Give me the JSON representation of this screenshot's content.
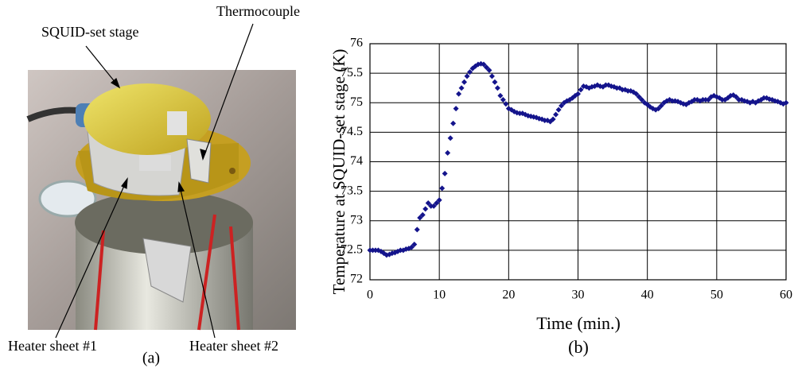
{
  "panel_a": {
    "labels": [
      "SQUID-set stage",
      "Thermocouple",
      "Heater sheet #1",
      "Heater sheet #2"
    ],
    "caption": "(a)"
  },
  "chart_data": {
    "type": "scatter",
    "caption": "(b)",
    "x_label": "Time (min.)",
    "y_label": "Temperature at SQUID-set stage (K)",
    "color": "#14148c",
    "grid": true,
    "xlim": [
      0,
      60
    ],
    "xticks": [
      0,
      10,
      20,
      30,
      40,
      50,
      60
    ],
    "ylim": [
      72,
      76
    ],
    "yticks": [
      72,
      72.5,
      73,
      73.5,
      74,
      74.5,
      75,
      75.5,
      76
    ],
    "x": [
      0,
      0.4,
      0.8,
      1.2,
      1.6,
      2,
      2.4,
      2.8,
      3.2,
      3.6,
      4,
      4.4,
      4.8,
      5.2,
      5.6,
      6,
      6.4,
      6.8,
      7.2,
      7.6,
      8,
      8.4,
      8.8,
      9.2,
      9.6,
      10,
      10.4,
      10.8,
      11.2,
      11.6,
      12,
      12.4,
      12.8,
      13.2,
      13.6,
      14,
      14.4,
      14.8,
      15.2,
      15.6,
      16,
      16.4,
      16.8,
      17.2,
      17.6,
      18,
      18.4,
      18.8,
      19.2,
      19.6,
      20,
      20.4,
      20.8,
      21.2,
      21.6,
      22,
      22.4,
      22.8,
      23.2,
      23.6,
      24,
      24.4,
      24.8,
      25.2,
      25.6,
      26,
      26.4,
      26.8,
      27.2,
      27.6,
      28,
      28.4,
      28.8,
      29.2,
      29.6,
      30,
      30.4,
      30.8,
      31.2,
      31.6,
      32,
      32.4,
      32.8,
      33.2,
      33.6,
      34,
      34.4,
      34.8,
      35.2,
      35.6,
      36,
      36.4,
      36.8,
      37.2,
      37.6,
      38,
      38.4,
      38.8,
      39.2,
      39.6,
      40,
      40.4,
      40.8,
      41.2,
      41.6,
      42,
      42.4,
      42.8,
      43.2,
      43.6,
      44,
      44.4,
      44.8,
      45.2,
      45.6,
      46,
      46.4,
      46.8,
      47.2,
      47.6,
      48,
      48.4,
      48.8,
      49.2,
      49.6,
      50,
      50.4,
      50.8,
      51.2,
      51.6,
      52,
      52.4,
      52.8,
      53.2,
      53.6,
      54,
      54.4,
      54.8,
      55.2,
      55.6,
      56,
      56.4,
      56.8,
      57.2,
      57.6,
      58,
      58.4,
      58.8,
      59.2,
      59.6,
      60
    ],
    "values": [
      72.5,
      72.5,
      72.5,
      72.5,
      72.48,
      72.45,
      72.42,
      72.43,
      72.45,
      72.46,
      72.48,
      72.5,
      72.5,
      72.52,
      72.53,
      72.55,
      72.6,
      72.85,
      73.05,
      73.1,
      73.2,
      73.3,
      73.25,
      73.25,
      73.3,
      73.35,
      73.55,
      73.8,
      74.15,
      74.4,
      74.65,
      74.9,
      75.15,
      75.25,
      75.35,
      75.45,
      75.52,
      75.58,
      75.62,
      75.65,
      75.66,
      75.65,
      75.6,
      75.55,
      75.45,
      75.35,
      75.25,
      75.12,
      75.05,
      74.98,
      74.9,
      74.88,
      74.85,
      74.83,
      74.82,
      74.82,
      74.8,
      74.78,
      74.77,
      74.76,
      74.75,
      74.73,
      74.72,
      74.7,
      74.7,
      74.68,
      74.72,
      74.8,
      74.88,
      74.95,
      75.0,
      75.03,
      75.05,
      75.08,
      75.12,
      75.15,
      75.22,
      75.28,
      75.27,
      75.25,
      75.27,
      75.28,
      75.3,
      75.28,
      75.27,
      75.3,
      75.3,
      75.28,
      75.27,
      75.25,
      75.25,
      75.22,
      75.22,
      75.2,
      75.2,
      75.18,
      75.15,
      75.1,
      75.05,
      75.0,
      74.97,
      74.93,
      74.9,
      74.88,
      74.9,
      74.95,
      75.0,
      75.03,
      75.05,
      75.03,
      75.03,
      75.02,
      75.0,
      74.98,
      74.97,
      75.0,
      75.02,
      75.05,
      75.05,
      75.03,
      75.05,
      75.05,
      75.05,
      75.1,
      75.12,
      75.1,
      75.08,
      75.05,
      75.05,
      75.08,
      75.12,
      75.13,
      75.1,
      75.05,
      75.05,
      75.03,
      75.02,
      75.0,
      75.02,
      75.0,
      75.03,
      75.05,
      75.08,
      75.08,
      75.06,
      75.05,
      75.03,
      75.02,
      75.0,
      74.98,
      75.0
    ]
  }
}
